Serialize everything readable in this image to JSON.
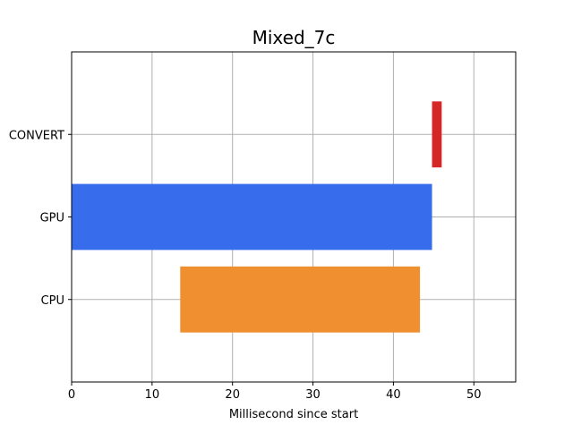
{
  "chart_data": {
    "type": "bar",
    "orientation": "horizontal",
    "title": "Mixed_7c",
    "xlabel": "Millisecond since start",
    "ylabel": "",
    "xlim": [
      0,
      55.2
    ],
    "xticks": [
      0,
      10,
      20,
      30,
      40,
      50
    ],
    "grid": true,
    "categories": [
      "CPU",
      "GPU",
      "CONVERT"
    ],
    "bars": [
      {
        "category": "CPU",
        "start": 13.5,
        "end": 43.3,
        "color": "#ef8f2f"
      },
      {
        "category": "GPU",
        "start": 0.0,
        "end": 44.8,
        "color": "#376ded"
      },
      {
        "category": "CONVERT",
        "start": 44.8,
        "end": 46.0,
        "color": "#d62728"
      }
    ]
  }
}
